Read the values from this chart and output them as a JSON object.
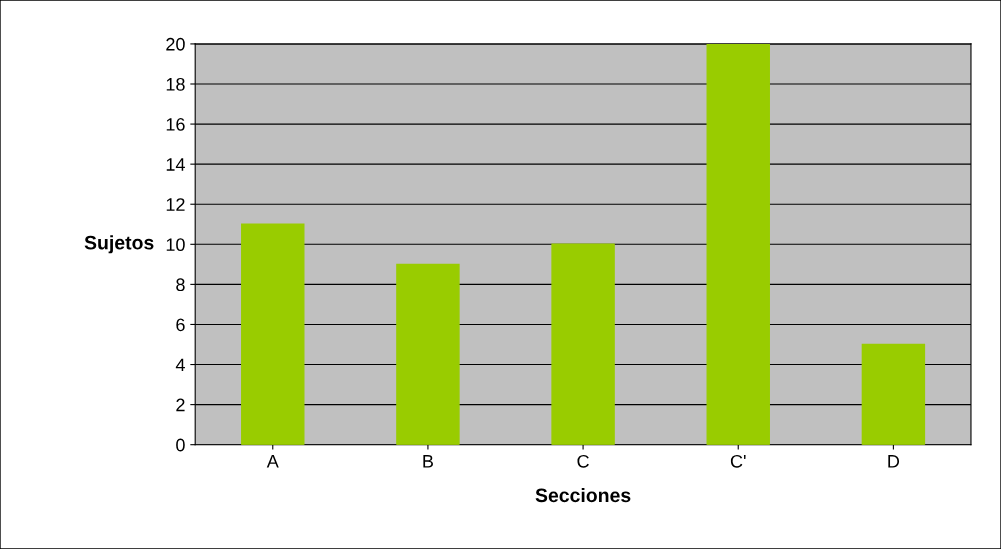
{
  "chart_data": {
    "type": "bar",
    "xlabel": "Secciones",
    "ylabel": "Sujetos",
    "categories": [
      "A",
      "B",
      "C",
      "C'",
      "D"
    ],
    "values": [
      11,
      9,
      10,
      20,
      5
    ],
    "color": "#99cc00",
    "ylim": [
      0,
      20
    ],
    "yticks": [
      0,
      2,
      4,
      6,
      8,
      10,
      12,
      14,
      16,
      18,
      20
    ],
    "grid": "y",
    "legend": false
  }
}
